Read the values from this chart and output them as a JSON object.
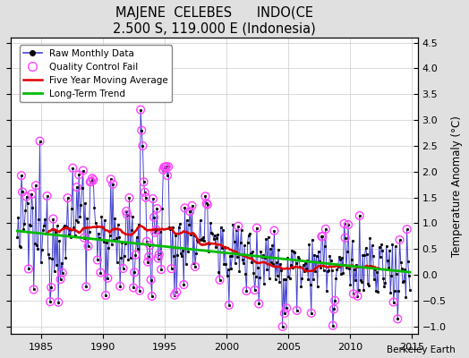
{
  "title": "MAJENE  CELEBES      INDO(CE",
  "subtitle": "2.500 S, 119.000 E (Indonesia)",
  "ylabel": "Temperature Anomaly (°C)",
  "xlabel_credit": "Berkeley Earth",
  "xlim": [
    1982.5,
    2015.5
  ],
  "ylim": [
    -1.15,
    4.6
  ],
  "yticks": [
    -1,
    -0.5,
    0,
    0.5,
    1,
    1.5,
    2,
    2.5,
    3,
    3.5,
    4,
    4.5
  ],
  "xticks": [
    1985,
    1990,
    1995,
    2000,
    2005,
    2010,
    2015
  ],
  "bg_color": "#e0e0e0",
  "plot_bg_color": "#ffffff",
  "raw_line_color": "#4444cc",
  "raw_marker_color": "#000000",
  "qc_fail_color": "#ff44ff",
  "moving_avg_color": "#dd0000",
  "trend_color": "#00bb00",
  "seed": 12345
}
